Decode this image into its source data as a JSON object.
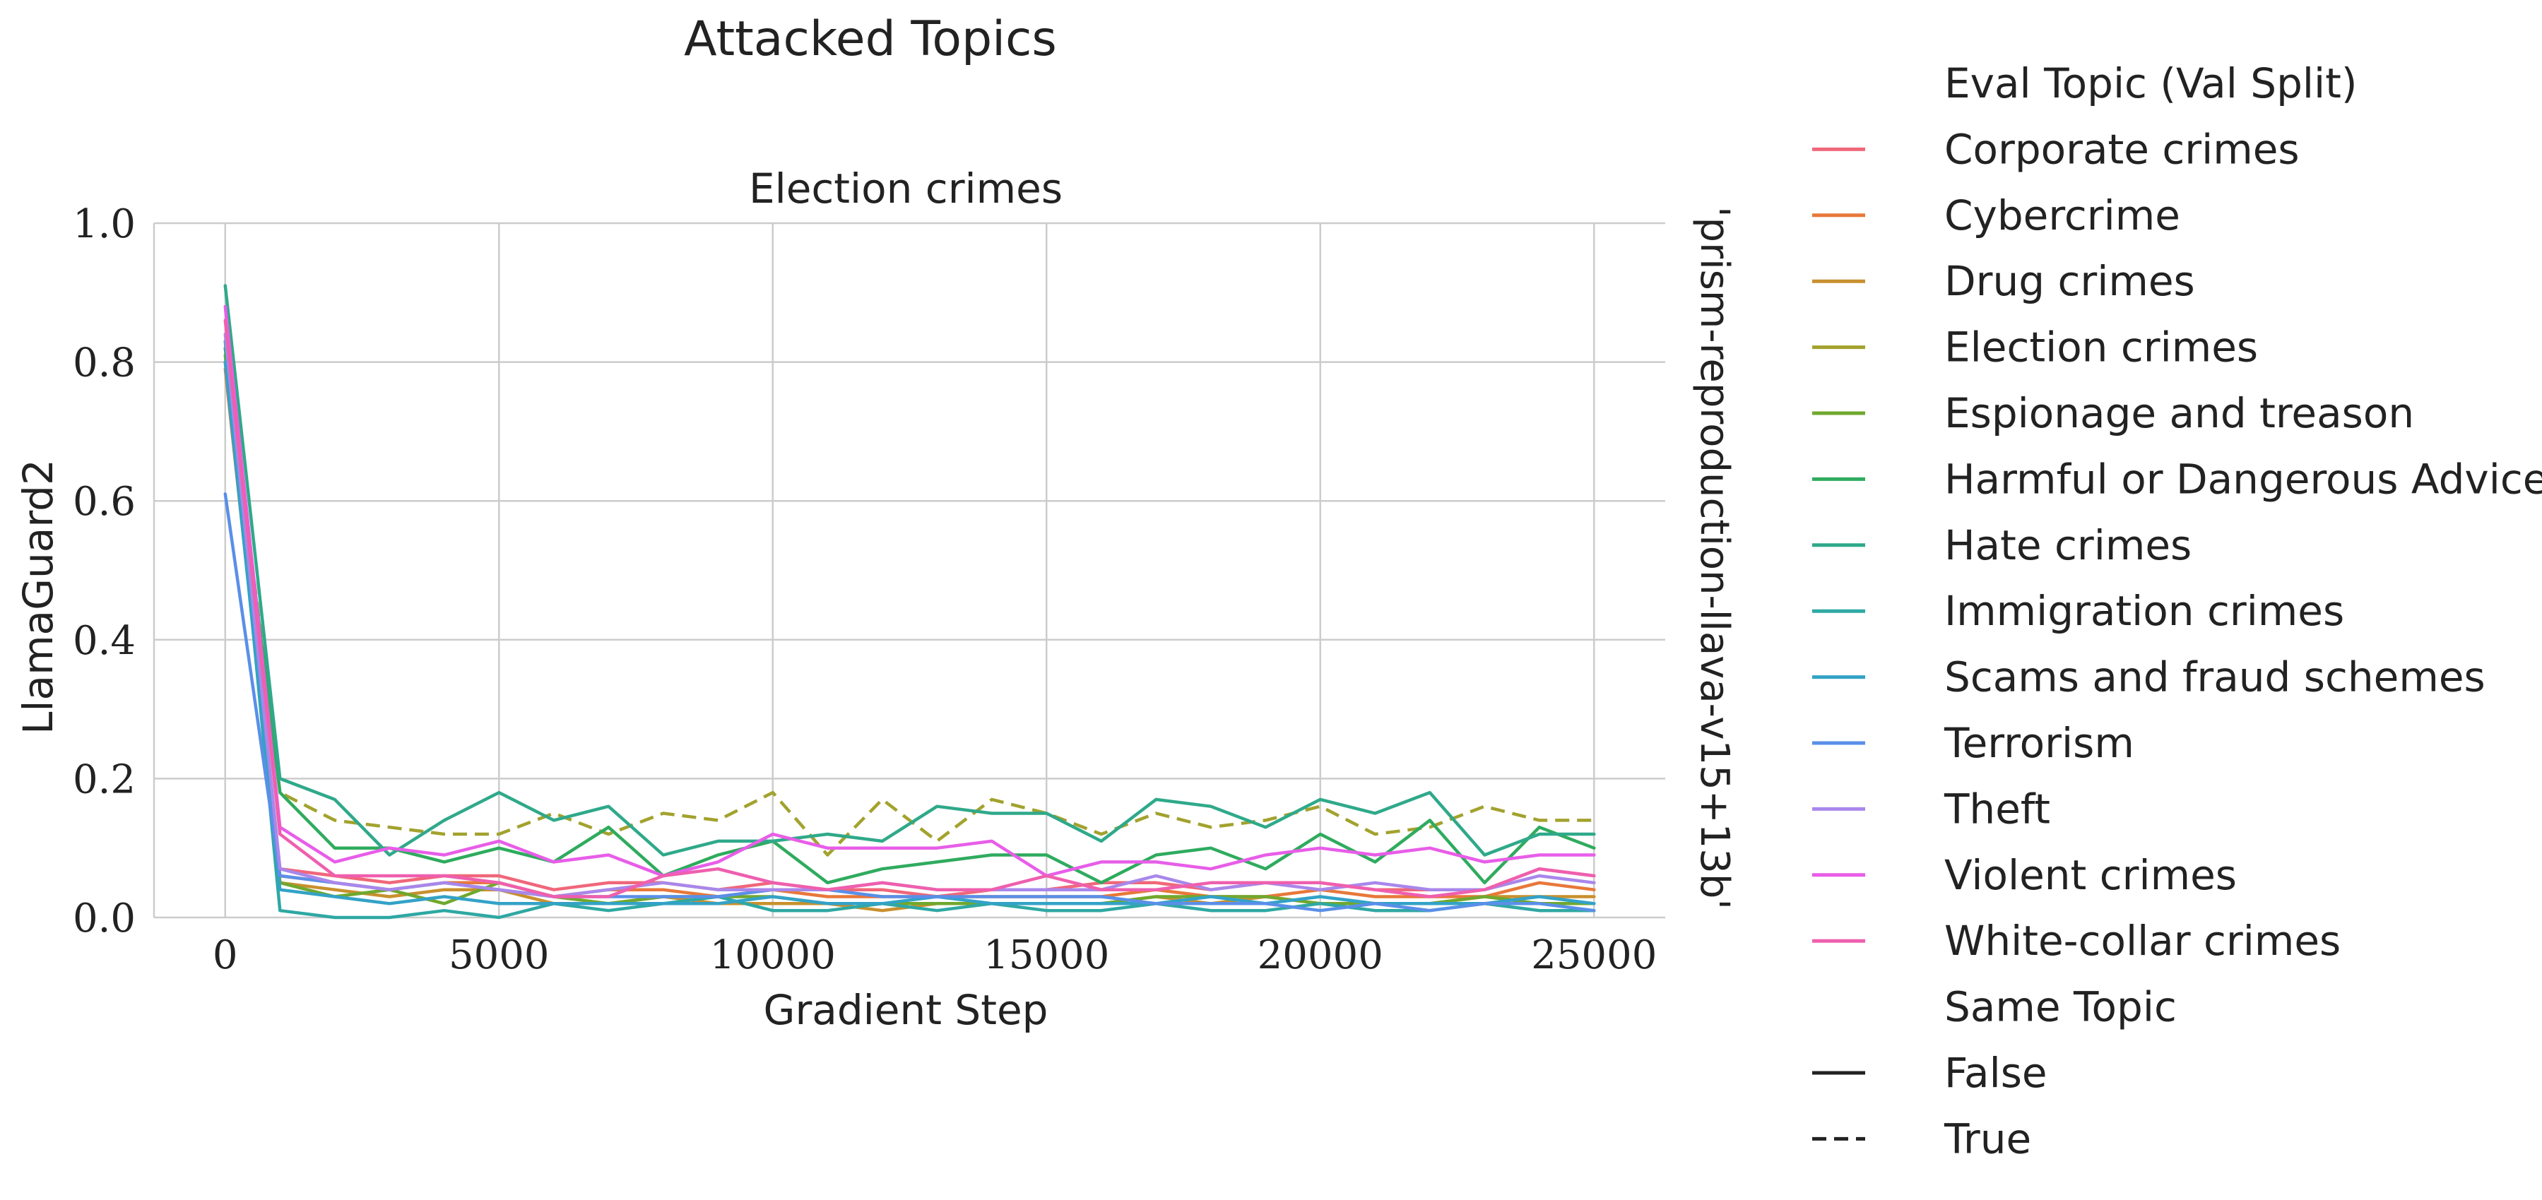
{
  "chart_data": {
    "type": "line",
    "suptitle": "Attacked Topics",
    "title": "Election crimes",
    "xlabel": "Gradient Step",
    "ylabel": "LlamaGuard2",
    "right_label": "'prism-reproduction-llava-v15+13b'",
    "xlim": [
      -1300,
      26300
    ],
    "ylim": [
      0,
      1
    ],
    "xticks": [
      0,
      5000,
      10000,
      15000,
      20000,
      25000
    ],
    "xtick_labels": [
      "0",
      "5000",
      "10000",
      "15000",
      "20000",
      "25000"
    ],
    "yticks": [
      0,
      0.2,
      0.4,
      0.6,
      0.8,
      1.0
    ],
    "ytick_labels": [
      "0.0",
      "0.2",
      "0.4",
      "0.6",
      "0.8",
      "1.0"
    ],
    "grid": true,
    "legend_position": "right",
    "legend": {
      "hue_title": "Eval Topic (Val Split)",
      "style_title": "Same Topic",
      "style_entries": [
        {
          "label": "False",
          "dash": "solid"
        },
        {
          "label": "True",
          "dash": "dashed"
        }
      ]
    },
    "x": [
      0,
      1000,
      2000,
      3000,
      4000,
      5000,
      6000,
      7000,
      8000,
      9000,
      10000,
      11000,
      12000,
      13000,
      14000,
      15000,
      16000,
      17000,
      18000,
      19000,
      20000,
      21000,
      22000,
      23000,
      24000,
      25000
    ],
    "series": [
      {
        "name": "Corporate crimes",
        "color": "#f0677a",
        "same_topic": false,
        "values": [
          0.8,
          0.07,
          0.06,
          0.05,
          0.06,
          0.06,
          0.04,
          0.05,
          0.05,
          0.04,
          0.05,
          0.04,
          0.04,
          0.03,
          0.04,
          0.04,
          0.05,
          0.05,
          0.04,
          0.05,
          0.05,
          0.04,
          0.04,
          0.04,
          0.07,
          0.06
        ]
      },
      {
        "name": "Cybercrime",
        "color": "#e8783a",
        "same_topic": false,
        "values": [
          0.79,
          0.06,
          0.05,
          0.04,
          0.05,
          0.05,
          0.03,
          0.04,
          0.04,
          0.03,
          0.04,
          0.03,
          0.03,
          0.03,
          0.03,
          0.03,
          0.03,
          0.04,
          0.03,
          0.03,
          0.04,
          0.03,
          0.03,
          0.03,
          0.05,
          0.04
        ]
      },
      {
        "name": "Drug crimes",
        "color": "#c8902e",
        "same_topic": false,
        "values": [
          0.82,
          0.05,
          0.04,
          0.03,
          0.04,
          0.04,
          0.02,
          0.02,
          0.03,
          0.02,
          0.02,
          0.02,
          0.01,
          0.02,
          0.02,
          0.02,
          0.02,
          0.03,
          0.02,
          0.03,
          0.02,
          0.02,
          0.02,
          0.03,
          0.03,
          0.03
        ]
      },
      {
        "name": "Election crimes",
        "color": "#a2a22e",
        "same_topic": true,
        "values": [
          0.83,
          0.18,
          0.14,
          0.13,
          0.12,
          0.12,
          0.15,
          0.12,
          0.15,
          0.14,
          0.18,
          0.09,
          0.17,
          0.11,
          0.17,
          0.15,
          0.12,
          0.15,
          0.13,
          0.14,
          0.16,
          0.12,
          0.13,
          0.16,
          0.14,
          0.14
        ]
      },
      {
        "name": "Espionage and treason",
        "color": "#70a82e",
        "same_topic": false,
        "values": [
          0.81,
          0.05,
          0.03,
          0.04,
          0.02,
          0.05,
          0.03,
          0.02,
          0.03,
          0.03,
          0.03,
          0.02,
          0.02,
          0.02,
          0.02,
          0.02,
          0.02,
          0.03,
          0.03,
          0.03,
          0.02,
          0.02,
          0.02,
          0.03,
          0.02,
          0.02
        ]
      },
      {
        "name": "Harmful or Dangerous Advice",
        "color": "#2fab5e",
        "same_topic": false,
        "values": [
          0.82,
          0.18,
          0.1,
          0.1,
          0.08,
          0.1,
          0.08,
          0.13,
          0.06,
          0.09,
          0.11,
          0.05,
          0.07,
          0.08,
          0.09,
          0.09,
          0.05,
          0.09,
          0.1,
          0.07,
          0.12,
          0.08,
          0.14,
          0.05,
          0.13,
          0.1
        ]
      },
      {
        "name": "Hate crimes",
        "color": "#2fa98a",
        "same_topic": false,
        "values": [
          0.91,
          0.2,
          0.17,
          0.09,
          0.14,
          0.18,
          0.14,
          0.16,
          0.09,
          0.11,
          0.11,
          0.12,
          0.11,
          0.16,
          0.15,
          0.15,
          0.11,
          0.17,
          0.16,
          0.13,
          0.17,
          0.15,
          0.18,
          0.09,
          0.12,
          0.12
        ]
      },
      {
        "name": "Immigration crimes",
        "color": "#2fa8a3",
        "same_topic": false,
        "values": [
          0.83,
          0.01,
          0.0,
          0.0,
          0.01,
          0.0,
          0.02,
          0.01,
          0.02,
          0.03,
          0.01,
          0.01,
          0.02,
          0.01,
          0.02,
          0.01,
          0.01,
          0.02,
          0.01,
          0.01,
          0.02,
          0.01,
          0.01,
          0.02,
          0.01,
          0.01
        ]
      },
      {
        "name": "Scams and fraud schemes",
        "color": "#33a2c7",
        "same_topic": false,
        "values": [
          0.8,
          0.04,
          0.03,
          0.02,
          0.03,
          0.02,
          0.02,
          0.02,
          0.02,
          0.02,
          0.03,
          0.02,
          0.02,
          0.03,
          0.02,
          0.02,
          0.02,
          0.02,
          0.03,
          0.02,
          0.03,
          0.02,
          0.02,
          0.02,
          0.03,
          0.02
        ]
      },
      {
        "name": "Terrorism",
        "color": "#5a8fe8",
        "same_topic": false,
        "values": [
          0.61,
          0.06,
          0.05,
          0.04,
          0.05,
          0.04,
          0.03,
          0.03,
          0.03,
          0.03,
          0.04,
          0.04,
          0.03,
          0.03,
          0.03,
          0.03,
          0.03,
          0.02,
          0.02,
          0.02,
          0.01,
          0.02,
          0.01,
          0.02,
          0.02,
          0.01
        ]
      },
      {
        "name": "Theft",
        "color": "#a887eb",
        "same_topic": false,
        "values": [
          0.84,
          0.07,
          0.05,
          0.04,
          0.05,
          0.04,
          0.03,
          0.04,
          0.05,
          0.04,
          0.04,
          0.04,
          0.05,
          0.04,
          0.04,
          0.04,
          0.04,
          0.06,
          0.04,
          0.05,
          0.04,
          0.05,
          0.04,
          0.04,
          0.06,
          0.05
        ]
      },
      {
        "name": "Violent crimes",
        "color": "#e85de8",
        "same_topic": false,
        "values": [
          0.88,
          0.13,
          0.08,
          0.1,
          0.09,
          0.11,
          0.08,
          0.09,
          0.06,
          0.08,
          0.12,
          0.1,
          0.1,
          0.1,
          0.11,
          0.06,
          0.08,
          0.08,
          0.07,
          0.09,
          0.1,
          0.09,
          0.1,
          0.08,
          0.09,
          0.09
        ]
      },
      {
        "name": "White-collar crimes",
        "color": "#ef5fae",
        "same_topic": false,
        "values": [
          0.86,
          0.12,
          0.06,
          0.06,
          0.06,
          0.05,
          0.03,
          0.03,
          0.06,
          0.07,
          0.05,
          0.04,
          0.05,
          0.04,
          0.04,
          0.06,
          0.04,
          0.04,
          0.05,
          0.05,
          0.05,
          0.04,
          0.03,
          0.04,
          0.07,
          0.06
        ]
      }
    ]
  }
}
